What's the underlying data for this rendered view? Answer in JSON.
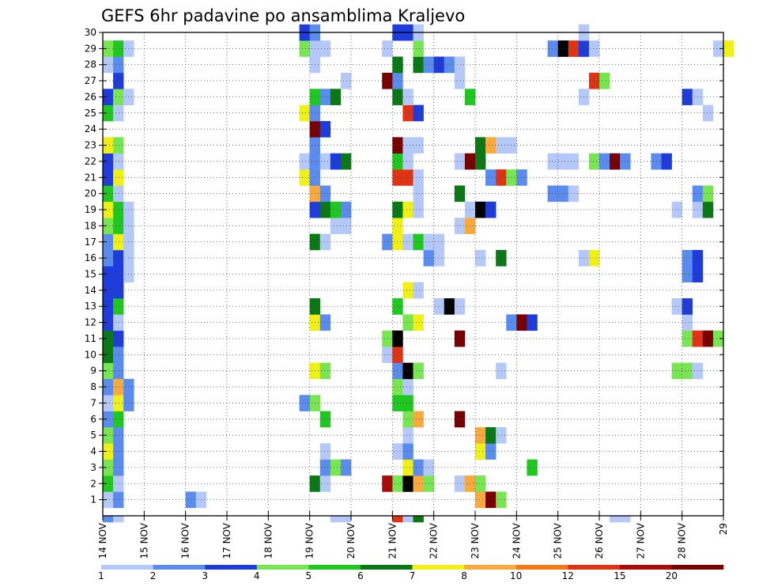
{
  "chart_data": {
    "type": "heatmap",
    "title": "GEFS 6hr padavine po ansamblima Kraljevo",
    "x_tick_labels": [
      "14 NOV",
      "15 NOV",
      "16 NOV",
      "17 NOV",
      "18 NOV",
      "19 NOV",
      "20 NOV",
      "21 NOV",
      "22 NOV",
      "23 NOV",
      "24 NOV",
      "25 NOV",
      "26 NOV",
      "27 NOV",
      "28 NOV",
      "29"
    ],
    "y_tick_labels": [
      "1",
      "2",
      "3",
      "4",
      "5",
      "6",
      "7",
      "8",
      "9",
      "10",
      "11",
      "12",
      "13",
      "14",
      "15",
      "16",
      "17",
      "18",
      "19",
      "20",
      "21",
      "22",
      "23",
      "24",
      "25",
      "26",
      "27",
      "28",
      "29",
      "30"
    ],
    "x_range_days": [
      0,
      15
    ],
    "y_range_members": [
      0,
      30
    ],
    "time_step_hours": 6,
    "grid": "dotted",
    "colorbar": {
      "tick_labels": [
        "1",
        "2",
        "3",
        "4",
        "5",
        "6",
        "7",
        "8",
        "10",
        "12",
        "15",
        "20"
      ],
      "colors": [
        "#b4c8fa",
        "#5a8cf0",
        "#1e3cdc",
        "#78e650",
        "#1ec81e",
        "#0a7814",
        "#f0f014",
        "#faaa3c",
        "#f57814",
        "#e13214",
        "#aa0a0a",
        "#780000"
      ]
    },
    "cell_values": [
      [
        14.0,
        1,
        1
      ],
      [
        14.25,
        2,
        1
      ],
      [
        16.0,
        2,
        1
      ],
      [
        16.25,
        1,
        1
      ],
      [
        23.0,
        8,
        1
      ],
      [
        23.25,
        12,
        1
      ],
      [
        23.5,
        4,
        1
      ],
      [
        14.0,
        5,
        2
      ],
      [
        14.25,
        1,
        2
      ],
      [
        19.0,
        6,
        2
      ],
      [
        19.25,
        1,
        2
      ],
      [
        20.75,
        11,
        2
      ],
      [
        21.0,
        4,
        2
      ],
      [
        21.25,
        14,
        2
      ],
      [
        21.5,
        8,
        2
      ],
      [
        21.75,
        4,
        2
      ],
      [
        22.5,
        1,
        2
      ],
      [
        22.75,
        8,
        2
      ],
      [
        23.0,
        4,
        2
      ],
      [
        14.0,
        4,
        3
      ],
      [
        14.25,
        2,
        3
      ],
      [
        19.25,
        2,
        3
      ],
      [
        19.5,
        4,
        3
      ],
      [
        19.75,
        2,
        3
      ],
      [
        21.25,
        7,
        3
      ],
      [
        21.5,
        2,
        3
      ],
      [
        21.75,
        1,
        3
      ],
      [
        24.25,
        5,
        3
      ],
      [
        14.0,
        7,
        4
      ],
      [
        14.25,
        2,
        4
      ],
      [
        19.25,
        1,
        4
      ],
      [
        21.0,
        1,
        4
      ],
      [
        21.25,
        2,
        4
      ],
      [
        23.0,
        7,
        4
      ],
      [
        23.25,
        2,
        4
      ],
      [
        14.0,
        4,
        5
      ],
      [
        14.25,
        2,
        5
      ],
      [
        21.25,
        1,
        5
      ],
      [
        23.0,
        8,
        5
      ],
      [
        23.25,
        6,
        5
      ],
      [
        23.5,
        1,
        5
      ],
      [
        14.0,
        2,
        6
      ],
      [
        14.25,
        5,
        6
      ],
      [
        19.25,
        5,
        6
      ],
      [
        21.25,
        4,
        6
      ],
      [
        21.5,
        8,
        6
      ],
      [
        22.5,
        12,
        6
      ],
      [
        14.0,
        1,
        7
      ],
      [
        14.25,
        7,
        7
      ],
      [
        14.5,
        2,
        7
      ],
      [
        18.75,
        2,
        7
      ],
      [
        19.0,
        4,
        7
      ],
      [
        21.0,
        5,
        7
      ],
      [
        21.25,
        5,
        7
      ],
      [
        14.0,
        2,
        8
      ],
      [
        14.25,
        8,
        8
      ],
      [
        14.5,
        2,
        8
      ],
      [
        21.0,
        4,
        8
      ],
      [
        21.25,
        1,
        8
      ],
      [
        14.0,
        4,
        9
      ],
      [
        14.25,
        2,
        9
      ],
      [
        19.0,
        7,
        9
      ],
      [
        19.25,
        4,
        9
      ],
      [
        21.0,
        2,
        9
      ],
      [
        21.25,
        14,
        9
      ],
      [
        21.5,
        4,
        9
      ],
      [
        23.5,
        1,
        9
      ],
      [
        27.75,
        4,
        9
      ],
      [
        28.0,
        4,
        9
      ],
      [
        28.25,
        1,
        9
      ],
      [
        14.0,
        6,
        10
      ],
      [
        14.25,
        2,
        10
      ],
      [
        20.75,
        1,
        10
      ],
      [
        21.0,
        10,
        10
      ],
      [
        14.0,
        6,
        11
      ],
      [
        14.25,
        3,
        11
      ],
      [
        20.75,
        4,
        11
      ],
      [
        21.0,
        14,
        11
      ],
      [
        22.5,
        12,
        11
      ],
      [
        28.0,
        4,
        11
      ],
      [
        28.25,
        10,
        11
      ],
      [
        28.5,
        12,
        11
      ],
      [
        28.75,
        4,
        11
      ],
      [
        14.0,
        3,
        12
      ],
      [
        14.25,
        1,
        12
      ],
      [
        19.0,
        7,
        12
      ],
      [
        19.25,
        2,
        12
      ],
      [
        21.25,
        4,
        12
      ],
      [
        21.5,
        7,
        12
      ],
      [
        23.75,
        2,
        12
      ],
      [
        24.0,
        12,
        12
      ],
      [
        24.25,
        3,
        12
      ],
      [
        28.0,
        1,
        12
      ],
      [
        14.0,
        3,
        13
      ],
      [
        14.25,
        5,
        13
      ],
      [
        19.0,
        6,
        13
      ],
      [
        21.0,
        5,
        13
      ],
      [
        22.0,
        1,
        13
      ],
      [
        22.25,
        14,
        13
      ],
      [
        22.5,
        1,
        13
      ],
      [
        27.75,
        1,
        13
      ],
      [
        28.0,
        3,
        13
      ],
      [
        14.0,
        3,
        14
      ],
      [
        14.25,
        3,
        14
      ],
      [
        21.25,
        7,
        14
      ],
      [
        21.5,
        1,
        14
      ],
      [
        14.0,
        3,
        15
      ],
      [
        14.25,
        3,
        15
      ],
      [
        14.5,
        1,
        15
      ],
      [
        28.0,
        2,
        15
      ],
      [
        28.25,
        3,
        15
      ],
      [
        14.0,
        2,
        16
      ],
      [
        14.25,
        3,
        16
      ],
      [
        14.5,
        1,
        16
      ],
      [
        21.75,
        2,
        16
      ],
      [
        22.0,
        1,
        16
      ],
      [
        23.0,
        1,
        16
      ],
      [
        23.5,
        6,
        16
      ],
      [
        25.5,
        1,
        16
      ],
      [
        25.75,
        7,
        16
      ],
      [
        28.0,
        2,
        16
      ],
      [
        28.25,
        3,
        16
      ],
      [
        14.0,
        2,
        17
      ],
      [
        14.25,
        7,
        17
      ],
      [
        14.5,
        1,
        17
      ],
      [
        19.0,
        6,
        17
      ],
      [
        19.25,
        1,
        17
      ],
      [
        20.75,
        2,
        17
      ],
      [
        21.0,
        7,
        17
      ],
      [
        21.25,
        1,
        17
      ],
      [
        21.5,
        5,
        17
      ],
      [
        21.75,
        1,
        17
      ],
      [
        22.0,
        1,
        17
      ],
      [
        14.0,
        4,
        18
      ],
      [
        14.25,
        5,
        18
      ],
      [
        14.5,
        1,
        18
      ],
      [
        19.5,
        1,
        18
      ],
      [
        19.75,
        1,
        18
      ],
      [
        21.0,
        7,
        18
      ],
      [
        22.5,
        1,
        18
      ],
      [
        22.75,
        8,
        18
      ],
      [
        14.0,
        7,
        19
      ],
      [
        14.25,
        5,
        19
      ],
      [
        14.5,
        1,
        19
      ],
      [
        19.0,
        3,
        19
      ],
      [
        19.25,
        6,
        19
      ],
      [
        19.5,
        5,
        19
      ],
      [
        19.75,
        2,
        19
      ],
      [
        21.0,
        6,
        19
      ],
      [
        21.25,
        7,
        19
      ],
      [
        21.5,
        1,
        19
      ],
      [
        22.75,
        1,
        19
      ],
      [
        23.0,
        15,
        19
      ],
      [
        23.25,
        3,
        19
      ],
      [
        27.75,
        1,
        19
      ],
      [
        28.25,
        1,
        19
      ],
      [
        28.5,
        6,
        19
      ],
      [
        14.0,
        5,
        20
      ],
      [
        14.25,
        1,
        20
      ],
      [
        19.0,
        8,
        20
      ],
      [
        19.25,
        2,
        20
      ],
      [
        21.5,
        1,
        20
      ],
      [
        22.5,
        6,
        20
      ],
      [
        24.75,
        2,
        20
      ],
      [
        25.0,
        2,
        20
      ],
      [
        25.25,
        1,
        20
      ],
      [
        28.25,
        2,
        20
      ],
      [
        28.5,
        4,
        20
      ],
      [
        14.0,
        3,
        21
      ],
      [
        14.25,
        7,
        21
      ],
      [
        18.75,
        7,
        21
      ],
      [
        19.0,
        2,
        21
      ],
      [
        21.0,
        10,
        21
      ],
      [
        21.25,
        10,
        21
      ],
      [
        21.5,
        1,
        21
      ],
      [
        23.25,
        2,
        21
      ],
      [
        23.5,
        10,
        21
      ],
      [
        23.75,
        4,
        21
      ],
      [
        24.0,
        2,
        21
      ],
      [
        14.0,
        3,
        22
      ],
      [
        14.25,
        1,
        22
      ],
      [
        18.75,
        1,
        22
      ],
      [
        19.0,
        2,
        22
      ],
      [
        19.25,
        1,
        22
      ],
      [
        19.5,
        3,
        22
      ],
      [
        19.75,
        6,
        22
      ],
      [
        21.0,
        5,
        22
      ],
      [
        21.25,
        1,
        22
      ],
      [
        22.5,
        1,
        22
      ],
      [
        22.75,
        12,
        22
      ],
      [
        23.0,
        6,
        22
      ],
      [
        24.75,
        1,
        22
      ],
      [
        25.0,
        1,
        22
      ],
      [
        25.25,
        1,
        22
      ],
      [
        25.75,
        4,
        22
      ],
      [
        26.0,
        2,
        22
      ],
      [
        26.25,
        12,
        22
      ],
      [
        26.5,
        2,
        22
      ],
      [
        27.25,
        2,
        22
      ],
      [
        27.5,
        3,
        22
      ],
      [
        14.0,
        7,
        23
      ],
      [
        14.25,
        4,
        23
      ],
      [
        19.0,
        2,
        23
      ],
      [
        21.0,
        12,
        23
      ],
      [
        21.25,
        1,
        23
      ],
      [
        21.5,
        1,
        23
      ],
      [
        23.0,
        6,
        23
      ],
      [
        23.25,
        8,
        23
      ],
      [
        23.5,
        1,
        23
      ],
      [
        23.75,
        1,
        23
      ],
      [
        19.0,
        12,
        24
      ],
      [
        19.25,
        3,
        24
      ],
      [
        14.0,
        5,
        25
      ],
      [
        14.25,
        1,
        25
      ],
      [
        18.75,
        7,
        25
      ],
      [
        19.0,
        2,
        25
      ],
      [
        21.25,
        10,
        25
      ],
      [
        21.5,
        3,
        25
      ],
      [
        28.5,
        1,
        25
      ],
      [
        14.0,
        3,
        26
      ],
      [
        14.25,
        4,
        26
      ],
      [
        14.5,
        1,
        26
      ],
      [
        19.0,
        5,
        26
      ],
      [
        19.25,
        2,
        26
      ],
      [
        19.5,
        6,
        26
      ],
      [
        21.0,
        6,
        26
      ],
      [
        21.25,
        1,
        26
      ],
      [
        22.75,
        5,
        26
      ],
      [
        25.5,
        1,
        26
      ],
      [
        28.0,
        3,
        26
      ],
      [
        28.25,
        1,
        26
      ],
      [
        14.25,
        3,
        27
      ],
      [
        19.75,
        1,
        27
      ],
      [
        20.75,
        12,
        27
      ],
      [
        21.0,
        2,
        27
      ],
      [
        22.5,
        1,
        27
      ],
      [
        25.75,
        10,
        27
      ],
      [
        26.0,
        4,
        27
      ],
      [
        14.0,
        1,
        28
      ],
      [
        14.25,
        2,
        28
      ],
      [
        19.0,
        1,
        28
      ],
      [
        21.0,
        6,
        28
      ],
      [
        21.5,
        6,
        28
      ],
      [
        21.75,
        2,
        28
      ],
      [
        22.0,
        3,
        28
      ],
      [
        22.25,
        2,
        28
      ],
      [
        22.5,
        1,
        28
      ],
      [
        14.0,
        4,
        29
      ],
      [
        14.25,
        5,
        29
      ],
      [
        14.5,
        1,
        29
      ],
      [
        18.75,
        4,
        29
      ],
      [
        19.0,
        1,
        29
      ],
      [
        19.25,
        1,
        29
      ],
      [
        20.75,
        1,
        29
      ],
      [
        21.5,
        4,
        29
      ],
      [
        24.75,
        2,
        29
      ],
      [
        25.0,
        14,
        29
      ],
      [
        25.25,
        10,
        29
      ],
      [
        25.5,
        3,
        29
      ],
      [
        25.75,
        1,
        29
      ],
      [
        28.75,
        1,
        29
      ],
      [
        29.0,
        7,
        29
      ],
      [
        18.75,
        3,
        30
      ],
      [
        19.0,
        2,
        30
      ],
      [
        21.0,
        3,
        30
      ],
      [
        21.25,
        3,
        30
      ],
      [
        21.5,
        1,
        30
      ],
      [
        25.5,
        1,
        30
      ],
      [
        14.0,
        2,
        0
      ],
      [
        14.25,
        1,
        0
      ],
      [
        19.5,
        1,
        0
      ],
      [
        19.75,
        1,
        0
      ],
      [
        21.0,
        10,
        0
      ],
      [
        21.25,
        1,
        0
      ],
      [
        21.5,
        6,
        0
      ],
      [
        26.25,
        1,
        0
      ],
      [
        26.5,
        1,
        0
      ]
    ]
  }
}
